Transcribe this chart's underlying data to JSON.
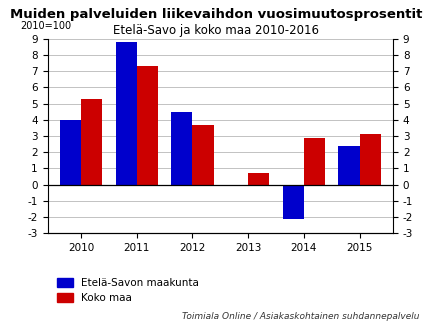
{
  "title": "Muiden palveluiden liikevaihdon vuosimuutosprosentit",
  "subtitle": "Etelä-Savo ja koko maa 2010-2016",
  "index_label": "2010=100",
  "years": [
    2010,
    2011,
    2012,
    2013,
    2014,
    2015
  ],
  "etela_savo": [
    4.0,
    8.8,
    4.5,
    -0.1,
    -2.1,
    2.4
  ],
  "koko_maa": [
    5.3,
    7.3,
    3.7,
    0.7,
    2.9,
    3.1
  ],
  "color_etela": "#0000cc",
  "color_koko": "#cc0000",
  "ylim_min": -3,
  "ylim_max": 9,
  "yticks": [
    -3,
    -2,
    -1,
    0,
    1,
    2,
    3,
    4,
    5,
    6,
    7,
    8,
    9
  ],
  "bar_width": 0.38,
  "legend_etela": "Etelä-Savon maakunta",
  "legend_koko": "Koko maa",
  "footer": "Toimiala Online / Asiakaskohtainen suhdannepalvelu",
  "background_color": "#ffffff",
  "title_fontsize": 9.5,
  "subtitle_fontsize": 8.5,
  "tick_fontsize": 7.5,
  "legend_fontsize": 7.5,
  "footer_fontsize": 6.5,
  "index_fontsize": 7
}
